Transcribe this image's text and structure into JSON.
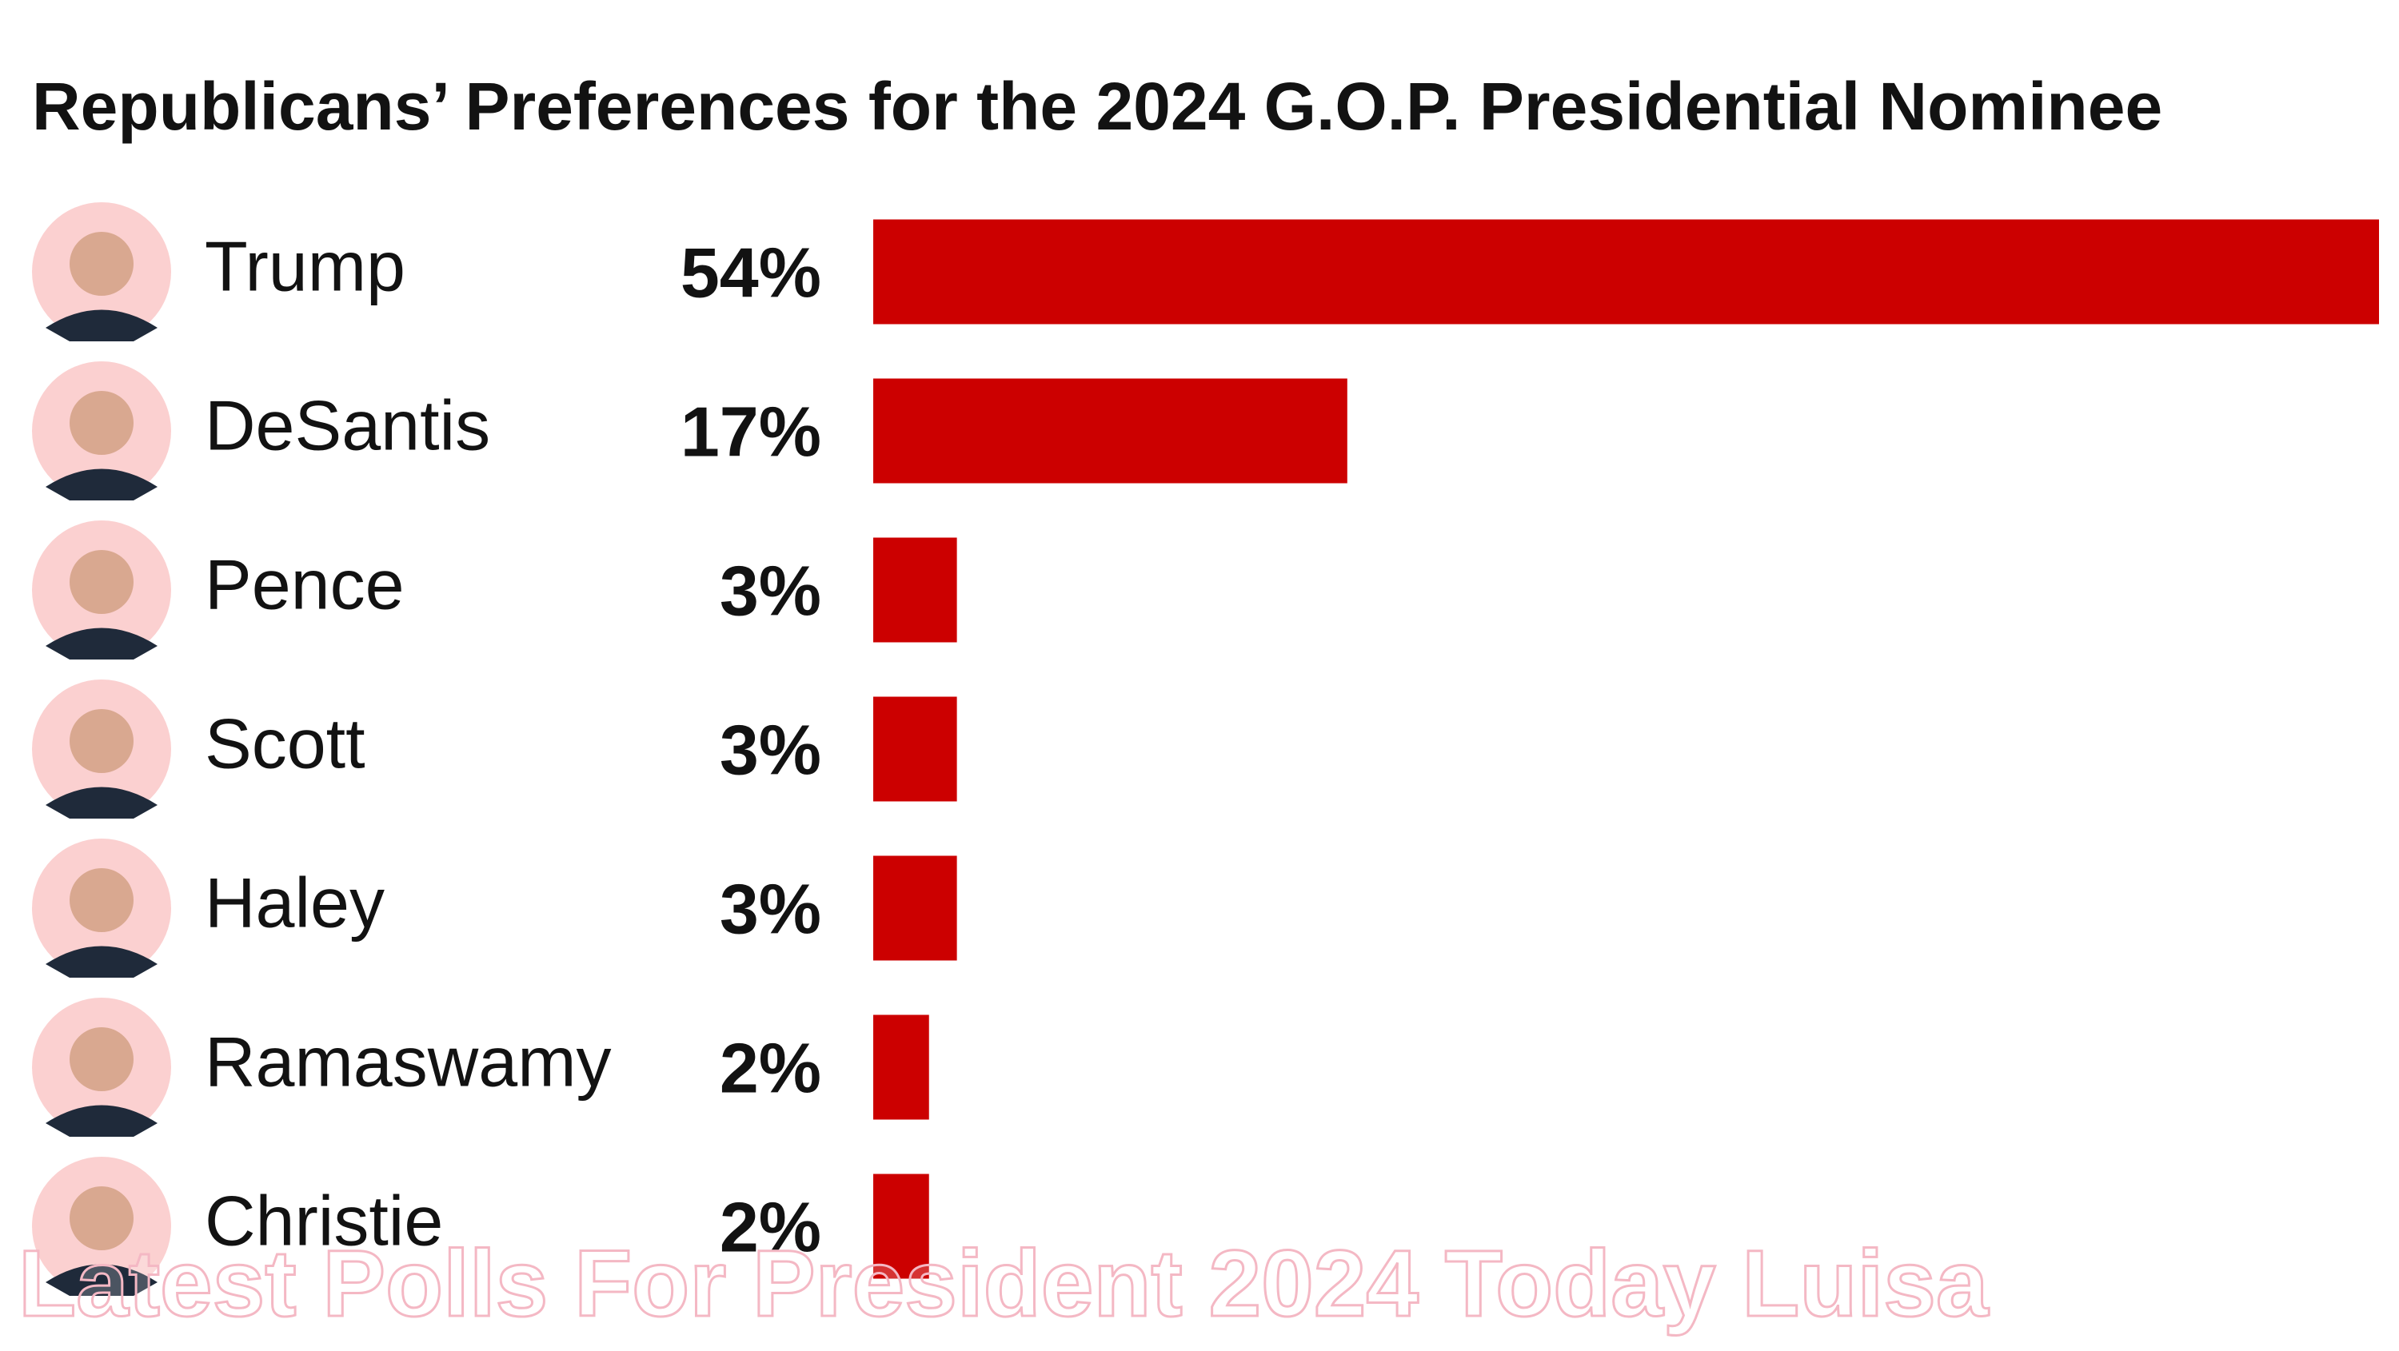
{
  "chart_data": {
    "type": "bar",
    "orientation": "horizontal",
    "title": "Republicans’ Preferences for the 2024 G.O.P. Presidential Nominee",
    "categories": [
      "Trump",
      "DeSantis",
      "Pence",
      "Scott",
      "Haley",
      "Ramaswamy",
      "Christie"
    ],
    "values": [
      54,
      17,
      3,
      3,
      3,
      2,
      2
    ],
    "value_labels": [
      "54%",
      "17%",
      "3%",
      "3%",
      "3%",
      "2%",
      "2%"
    ],
    "color": "#cc0000"
  },
  "watermark": "Latest Polls For President 2024 Today Luisa"
}
